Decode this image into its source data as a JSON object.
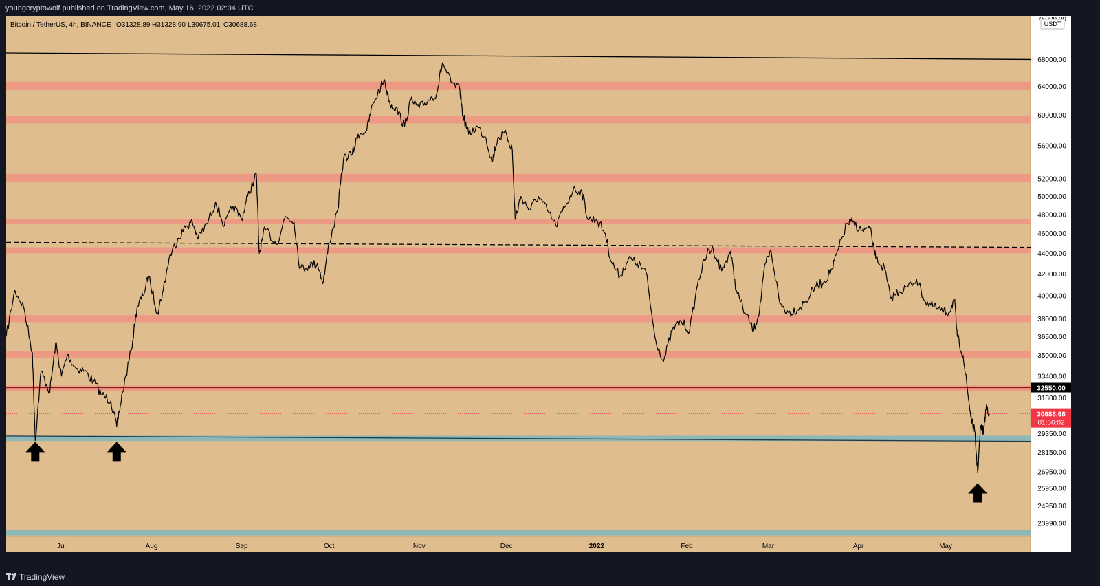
{
  "header": {
    "published_text": "youngcryptowolf published on TradingView.com, May 16, 2022 02:04 UTC"
  },
  "footer": {
    "brand": "TradingView"
  },
  "colors": {
    "background": "#dfbd8f",
    "resistance_band": "#ec9a84",
    "support_band": "#8fb7b5",
    "candle": "#000000",
    "price_tag_bg": "#f23645",
    "marker_tag_bg": "#000000"
  },
  "chart_data": {
    "type": "line",
    "title": "Bitcoin / TetherUS, 4h, BINANCE",
    "ohlc": {
      "open": "O31328.89",
      "high": "H31328.90",
      "low": "L30675.01",
      "close": "C30688.68"
    },
    "currency": "USDT",
    "y_scale": "log",
    "ylim": [
      23300,
      75000
    ],
    "y_ticks": [
      "75000.00",
      "68000.00",
      "64000.00",
      "60000.00",
      "56000.00",
      "52000.00",
      "50000.00",
      "48000.00",
      "46000.00",
      "44000.00",
      "42000.00",
      "40000.00",
      "38000.00",
      "36500.00",
      "35000.00",
      "33400.00",
      "31800.00",
      "29350.00",
      "28150.00",
      "26950.00",
      "25950.00",
      "24950.00",
      "23990.00"
    ],
    "x_ticks": [
      "Jul",
      "Aug",
      "Sep",
      "Oct",
      "Nov",
      "Dec",
      "2022",
      "Feb",
      "Mar",
      "Apr",
      "May"
    ],
    "xlim": [
      "2021-06-12",
      "2022-05-16"
    ],
    "series": [
      {
        "points": [
          [
            "2021-06-12",
            36500
          ],
          [
            "2021-06-15",
            40500
          ],
          [
            "2021-06-18",
            39000
          ],
          [
            "2021-06-21",
            35200
          ],
          [
            "2021-06-22",
            28900
          ],
          [
            "2021-06-24",
            33800
          ],
          [
            "2021-06-27",
            32200
          ],
          [
            "2021-06-29",
            36000
          ],
          [
            "2021-07-01",
            33400
          ],
          [
            "2021-07-03",
            35000
          ],
          [
            "2021-07-06",
            34000
          ],
          [
            "2021-07-09",
            33800
          ],
          [
            "2021-07-12",
            33000
          ],
          [
            "2021-07-15",
            32000
          ],
          [
            "2021-07-18",
            31600
          ],
          [
            "2021-07-20",
            29800
          ],
          [
            "2021-07-22",
            32200
          ],
          [
            "2021-07-25",
            35400
          ],
          [
            "2021-07-27",
            39000
          ],
          [
            "2021-07-29",
            40000
          ],
          [
            "2021-07-31",
            41800
          ],
          [
            "2021-08-03",
            38500
          ],
          [
            "2021-08-05",
            40500
          ],
          [
            "2021-08-07",
            43500
          ],
          [
            "2021-08-10",
            45500
          ],
          [
            "2021-08-13",
            46800
          ],
          [
            "2021-08-15",
            47200
          ],
          [
            "2021-08-17",
            45500
          ],
          [
            "2021-08-20",
            47000
          ],
          [
            "2021-08-23",
            49400
          ],
          [
            "2021-08-26",
            46800
          ],
          [
            "2021-08-29",
            48900
          ],
          [
            "2021-09-01",
            47500
          ],
          [
            "2021-09-03",
            50000
          ],
          [
            "2021-09-06",
            52600
          ],
          [
            "2021-09-07",
            44000
          ],
          [
            "2021-09-09",
            46500
          ],
          [
            "2021-09-13",
            44900
          ],
          [
            "2021-09-16",
            47800
          ],
          [
            "2021-09-19",
            47200
          ],
          [
            "2021-09-21",
            42500
          ],
          [
            "2021-09-24",
            42800
          ],
          [
            "2021-09-27",
            43000
          ],
          [
            "2021-09-29",
            41200
          ],
          [
            "2021-10-01",
            45000
          ],
          [
            "2021-10-04",
            48500
          ],
          [
            "2021-10-06",
            54500
          ],
          [
            "2021-10-09",
            55000
          ],
          [
            "2021-10-11",
            57500
          ],
          [
            "2021-10-14",
            58000
          ],
          [
            "2021-10-16",
            61500
          ],
          [
            "2021-10-20",
            65000
          ],
          [
            "2021-10-22",
            61500
          ],
          [
            "2021-10-24",
            61000
          ],
          [
            "2021-10-27",
            58500
          ],
          [
            "2021-10-29",
            62000
          ],
          [
            "2021-11-01",
            61000
          ],
          [
            "2021-11-04",
            62000
          ],
          [
            "2021-11-07",
            63000
          ],
          [
            "2021-11-09",
            67500
          ],
          [
            "2021-11-12",
            64500
          ],
          [
            "2021-11-15",
            63500
          ],
          [
            "2021-11-16",
            60000
          ],
          [
            "2021-11-18",
            57500
          ],
          [
            "2021-11-21",
            58500
          ],
          [
            "2021-11-24",
            57000
          ],
          [
            "2021-11-26",
            54000
          ],
          [
            "2021-11-28",
            57000
          ],
          [
            "2021-12-01",
            57500
          ],
          [
            "2021-12-03",
            55500
          ],
          [
            "2021-12-04",
            47500
          ],
          [
            "2021-12-06",
            50000
          ],
          [
            "2021-12-09",
            48500
          ],
          [
            "2021-12-12",
            50000
          ],
          [
            "2021-12-15",
            48500
          ],
          [
            "2021-12-18",
            46800
          ],
          [
            "2021-12-21",
            48800
          ],
          [
            "2021-12-24",
            50800
          ],
          [
            "2021-12-27",
            50500
          ],
          [
            "2021-12-29",
            47500
          ],
          [
            "2022-01-01",
            47500
          ],
          [
            "2022-01-04",
            46000
          ],
          [
            "2022-01-06",
            43200
          ],
          [
            "2022-01-09",
            41800
          ],
          [
            "2022-01-12",
            43500
          ],
          [
            "2022-01-15",
            43000
          ],
          [
            "2022-01-18",
            42200
          ],
          [
            "2022-01-21",
            36500
          ],
          [
            "2022-01-24",
            34500
          ],
          [
            "2022-01-27",
            37000
          ],
          [
            "2022-01-30",
            37800
          ],
          [
            "2022-02-02",
            37000
          ],
          [
            "2022-02-05",
            41500
          ],
          [
            "2022-02-08",
            44000
          ],
          [
            "2022-02-10",
            44500
          ],
          [
            "2022-02-13",
            42300
          ],
          [
            "2022-02-16",
            44200
          ],
          [
            "2022-02-18",
            40500
          ],
          [
            "2022-02-21",
            38500
          ],
          [
            "2022-02-24",
            37000
          ],
          [
            "2022-02-26",
            38700
          ],
          [
            "2022-02-28",
            43000
          ],
          [
            "2022-03-02",
            44200
          ],
          [
            "2022-03-05",
            39300
          ],
          [
            "2022-03-08",
            38500
          ],
          [
            "2022-03-11",
            38800
          ],
          [
            "2022-03-14",
            39500
          ],
          [
            "2022-03-17",
            40800
          ],
          [
            "2022-03-20",
            41200
          ],
          [
            "2022-03-23",
            42500
          ],
          [
            "2022-03-25",
            44300
          ],
          [
            "2022-03-28",
            47000
          ],
          [
            "2022-03-30",
            47200
          ],
          [
            "2022-04-02",
            46300
          ],
          [
            "2022-04-05",
            46500
          ],
          [
            "2022-04-07",
            43500
          ],
          [
            "2022-04-10",
            42500
          ],
          [
            "2022-04-12",
            39800
          ],
          [
            "2022-04-15",
            40400
          ],
          [
            "2022-04-18",
            40800
          ],
          [
            "2022-04-21",
            41500
          ],
          [
            "2022-04-24",
            39500
          ],
          [
            "2022-04-27",
            39000
          ],
          [
            "2022-04-30",
            38600
          ],
          [
            "2022-05-02",
            38500
          ],
          [
            "2022-05-04",
            39700
          ],
          [
            "2022-05-05",
            36500
          ],
          [
            "2022-05-07",
            35000
          ],
          [
            "2022-05-09",
            31500
          ],
          [
            "2022-05-10",
            30100
          ],
          [
            "2022-05-11",
            29500
          ],
          [
            "2022-05-12",
            26900
          ],
          [
            "2022-05-13",
            29800
          ],
          [
            "2022-05-14",
            29500
          ],
          [
            "2022-05-15",
            31300
          ],
          [
            "2022-05-16",
            30688.68
          ]
        ]
      }
    ],
    "resistance_levels": [
      {
        "low": 63500,
        "high": 64700
      },
      {
        "low": 58900,
        "high": 59900
      },
      {
        "low": 51700,
        "high": 52600
      },
      {
        "low": 47000,
        "high": 47500
      },
      {
        "low": 44000,
        "high": 44600
      },
      {
        "low": 37700,
        "high": 38300
      },
      {
        "low": 34800,
        "high": 35300
      },
      {
        "low": 32300,
        "high": 32700
      }
    ],
    "support_levels": [
      {
        "low": 28870,
        "high": 29220
      },
      {
        "low": 23350,
        "high": 23650
      }
    ],
    "trendlines": [
      {
        "style": "solid",
        "color": "#000000",
        "start": [
          "2021-06-12",
          69000
        ],
        "end": [
          "2022-05-16",
          68000
        ]
      },
      {
        "style": "dashed",
        "color": "#000000",
        "start": [
          "2021-06-12",
          45100
        ],
        "end": [
          "2022-05-16",
          44600
        ]
      },
      {
        "style": "solid",
        "color": "#1e3a4a",
        "start": [
          "2021-06-12",
          29200
        ],
        "end": [
          "2022-05-16",
          28850
        ]
      },
      {
        "style": "solid",
        "color": "#8b1a1a",
        "start": [
          "2021-06-12",
          32550
        ],
        "end": [
          "2022-05-16",
          32550
        ]
      }
    ],
    "arrows": [
      {
        "date": "2021-06-22",
        "value": 28200
      },
      {
        "date": "2021-07-20",
        "value": 28200
      },
      {
        "date": "2022-05-12",
        "value": 25700
      }
    ],
    "marker_label": "32550.00",
    "current_price": {
      "value": 30688.68,
      "label": "30688.68",
      "countdown": "01:56:02"
    }
  }
}
